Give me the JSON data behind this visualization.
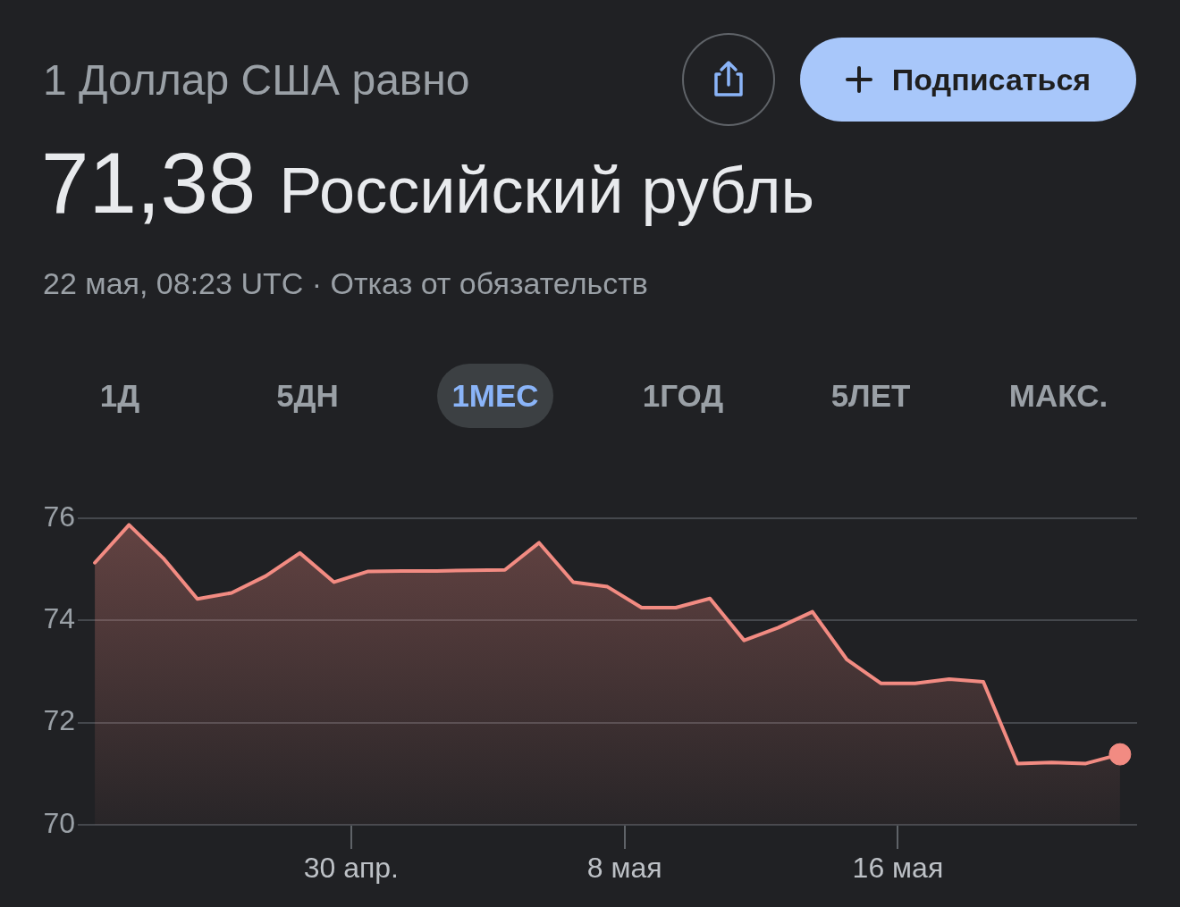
{
  "chart_data": {
    "type": "area",
    "title": "1 Доллар США равно",
    "subtitle": "71,38 Российский рубль",
    "annotations": [
      "22 мая, 08:23 UTC · Отказ от обязательств",
      "Подписаться",
      "1Д",
      "5ДН",
      "1МЕС",
      "1ГОД",
      "5ЛЕТ",
      "МАКС."
    ],
    "x": [
      "--04-22T12:00",
      "--04-23T12:00",
      "--04-24T12:00",
      "--04-25T12:00",
      "--04-26T12:00",
      "--04-27T12:00",
      "--04-28T12:00",
      "--04-29T12:00",
      "--04-30T12:00",
      "--05-01T12:00",
      "--05-02T12:00",
      "--05-03T12:00",
      "--05-04T12:00",
      "--05-05T12:00",
      "--05-06T12:00",
      "--05-07T12:00",
      "--05-08T12:00",
      "--05-09T12:00",
      "--05-10T12:00",
      "--05-11T12:00",
      "--05-12T12:00",
      "--05-13T12:00",
      "--05-14T12:00",
      "--05-15T12:00",
      "--05-16T12:00",
      "--05-17T12:00",
      "--05-18T12:00",
      "--05-19T12:00",
      "--05-20T12:00",
      "--05-21T12:00",
      "--05-22T12:00"
    ],
    "series": [
      {
        "color": "#f28b82",
        "values": [
          75.13,
          75.87,
          75.22,
          74.42,
          74.54,
          74.87,
          75.32,
          74.75,
          74.96,
          74.97,
          74.97,
          74.98,
          74.99,
          75.52,
          74.75,
          74.66,
          74.25,
          74.25,
          74.43,
          73.61,
          73.86,
          74.17,
          73.24,
          72.77,
          72.77,
          72.85,
          72.8,
          71.2,
          71.22,
          71.2,
          71.38
        ]
      },
      {
        "type": "scatter",
        "color": "#f28b82",
        "marker": "circle",
        "x": [
          "--05-22T12:00"
        ],
        "values": [
          71.38
        ]
      }
    ],
    "xlim": [
      "--04-22",
      "--05-23"
    ],
    "xticks": [
      {
        "value": "--04-30",
        "label": "30 апр."
      },
      {
        "value": "--05-08",
        "label": "8 мая"
      },
      {
        "value": "--05-16",
        "label": "16 мая"
      }
    ],
    "ylim": [
      70,
      76
    ],
    "yticks": [
      70,
      72,
      74,
      76
    ],
    "grid": "y"
  }
}
